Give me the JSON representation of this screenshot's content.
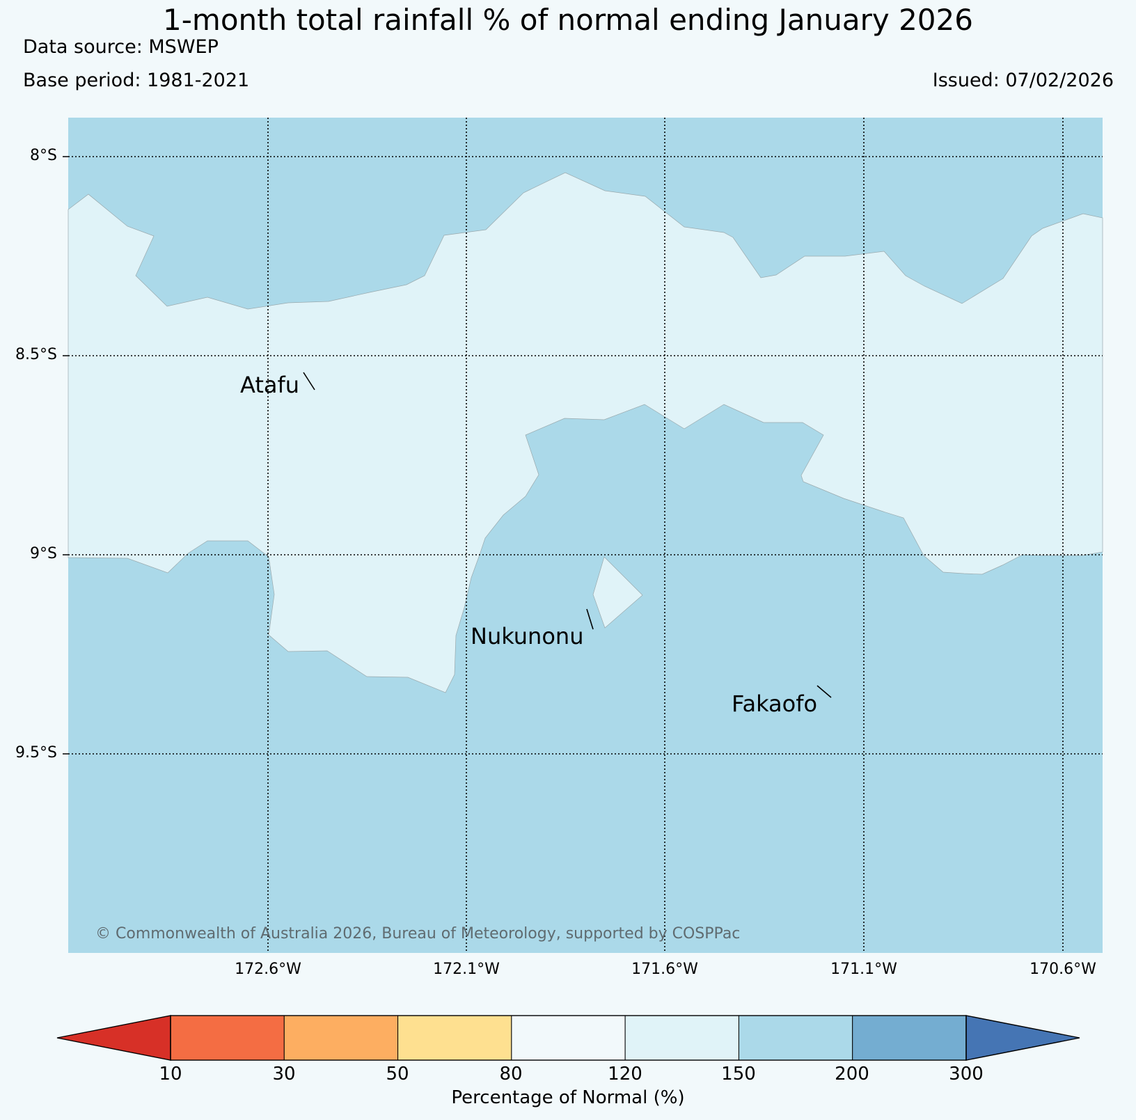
{
  "title": "1-month total rainfall % of normal ending January 2026",
  "data_source": "Data source: MSWEP",
  "base_period": "Base period: 1981-2021",
  "issued": "Issued: 07/02/2026",
  "copyright": "© Commonwealth of Australia 2026, Bureau of Meteorology, supported by COSPPac",
  "latitude_labels": [
    "8°S",
    "8.5°S",
    "9°S",
    "9.5°S"
  ],
  "longitude_labels": [
    "172.6°W",
    "172.1°W",
    "171.6°W",
    "171.1°W",
    "170.6°W"
  ],
  "places": [
    "Atafu",
    "Nukunonu",
    "Fakaofo"
  ],
  "colorbar": {
    "label": "Percentage of Normal (%)",
    "ticks": [
      "10",
      "30",
      "50",
      "80",
      "120",
      "150",
      "200",
      "300"
    ],
    "under_color": "#d73027",
    "over_color": "#4575b4",
    "bin_colors": [
      "#f46d43",
      "#fdae61",
      "#fee090",
      "#f2f9fb",
      "#e0f3f8",
      "#abd9e9",
      "#74add1"
    ]
  },
  "fill_colors": {
    "class_120_150": "#e0f3f8",
    "class_150_200": "#abd9e9"
  }
}
